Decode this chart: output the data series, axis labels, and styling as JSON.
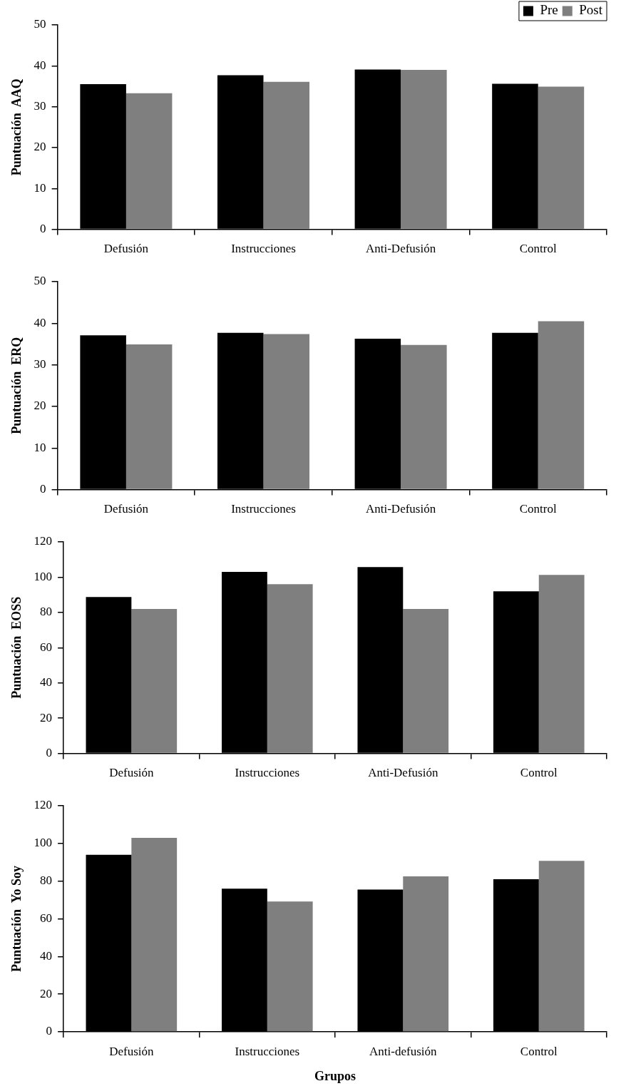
{
  "chart_data": [
    {
      "type": "bar",
      "ylabel": "Puntuación  AAQ",
      "categories": [
        "Defusión",
        "Instrucciones",
        "Anti-Defusión",
        "Control"
      ],
      "series": [
        {
          "name": "Pre",
          "color": "#000000",
          "values": [
            35.5,
            37.7,
            39.1,
            35.6
          ]
        },
        {
          "name": "Post",
          "color": "#7f7f7f",
          "values": [
            33.3,
            36.1,
            39.0,
            34.9
          ]
        }
      ],
      "ylim": [
        0,
        50
      ],
      "yticks": [
        0,
        10,
        20,
        30,
        40,
        50
      ],
      "grid": false,
      "legend": "top right"
    },
    {
      "type": "bar",
      "ylabel": "Puntuación  ERQ",
      "categories": [
        "Defusión",
        "Instrucciones",
        "Anti-Defusión",
        "Control"
      ],
      "series": [
        {
          "color": "#000000",
          "values": [
            37.1,
            37.7,
            36.3,
            37.7
          ]
        },
        {
          "color": "#7f7f7f",
          "values": [
            34.9,
            37.4,
            34.8,
            40.5
          ]
        }
      ],
      "ylim": [
        0,
        50
      ],
      "yticks": [
        0,
        10,
        20,
        30,
        40,
        50
      ],
      "grid": false
    },
    {
      "type": "bar",
      "ylabel": "Puntuación  EOSS",
      "categories": [
        "Defusión",
        "Instrucciones",
        "Anti-Defusión",
        "Control"
      ],
      "series": [
        {
          "color": "#000000",
          "values": [
            88.7,
            103,
            105.7,
            92
          ]
        },
        {
          "color": "#7f7f7f",
          "values": [
            82,
            96,
            82,
            101.3
          ]
        }
      ],
      "ylim": [
        0,
        120
      ],
      "yticks": [
        0,
        20,
        40,
        60,
        80,
        100,
        120
      ],
      "grid": false
    },
    {
      "type": "bar",
      "xlabel": "Grupos",
      "ylabel": "Puntuación  Yo Soy",
      "categories": [
        "Defusión",
        "Instrucciones",
        "Anti-defusión",
        "Control"
      ],
      "series": [
        {
          "color": "#000000",
          "values": [
            94,
            76,
            75.5,
            81
          ]
        },
        {
          "color": "#7f7f7f",
          "values": [
            103,
            69.2,
            82.5,
            90.8
          ]
        }
      ],
      "ylim": [
        0,
        120
      ],
      "yticks": [
        0,
        20,
        40,
        60,
        80,
        100,
        120
      ],
      "grid": false
    }
  ]
}
